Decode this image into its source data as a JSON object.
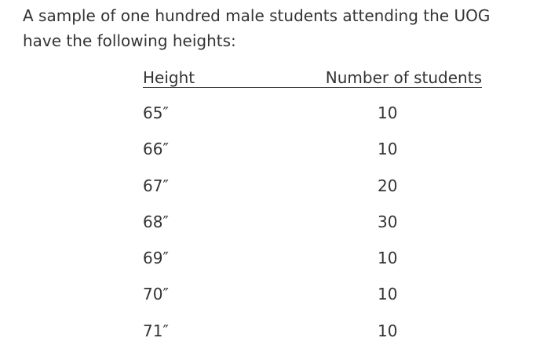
{
  "intro": {
    "line1": "A sample of one hundred male students attending the UOG",
    "line2": "have the following heights:"
  },
  "table": {
    "headers": {
      "height": "Height",
      "count": "Number of students"
    },
    "rows": [
      {
        "height": "65″",
        "count": "10"
      },
      {
        "height": "66″",
        "count": "10"
      },
      {
        "height": "67″",
        "count": "20"
      },
      {
        "height": "68″",
        "count": "30"
      },
      {
        "height": "69″",
        "count": "10"
      },
      {
        "height": "70″",
        "count": "10"
      },
      {
        "height": "71″",
        "count": "10"
      }
    ]
  }
}
